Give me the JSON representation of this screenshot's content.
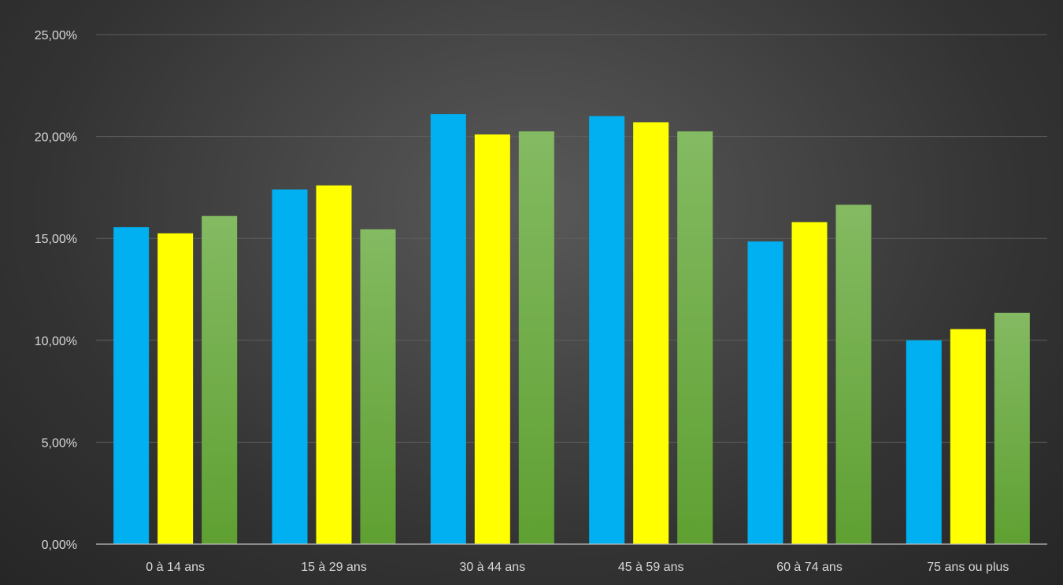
{
  "chart_data": {
    "type": "bar",
    "title": "",
    "xlabel": "",
    "ylabel": "",
    "categories": [
      "0 à 14 ans",
      "15 à 29 ans",
      "30 à 44 ans",
      "45 à 59 ans",
      "60 à 74 ans",
      "75 ans ou plus"
    ],
    "series": [
      {
        "color": "#00b0f0",
        "values": [
          15.55,
          17.4,
          21.1,
          21.0,
          14.85,
          10.0
        ]
      },
      {
        "color": "#ffff00",
        "values": [
          15.25,
          17.6,
          20.1,
          20.7,
          15.8,
          10.55
        ]
      },
      {
        "color": "#6aaa3f",
        "color_top": "#84ba62",
        "color_bottom": "#5fa032",
        "values": [
          16.1,
          15.45,
          20.25,
          20.25,
          16.65,
          11.35
        ]
      }
    ],
    "ylim": [
      0,
      25
    ],
    "y_ticks": [
      0,
      5,
      10,
      15,
      20,
      25
    ],
    "y_tick_labels": [
      "0,00%",
      "5,00%",
      "10,00%",
      "15,00%",
      "20,00%",
      "25,00%"
    ],
    "grid": true,
    "legend": "none"
  }
}
